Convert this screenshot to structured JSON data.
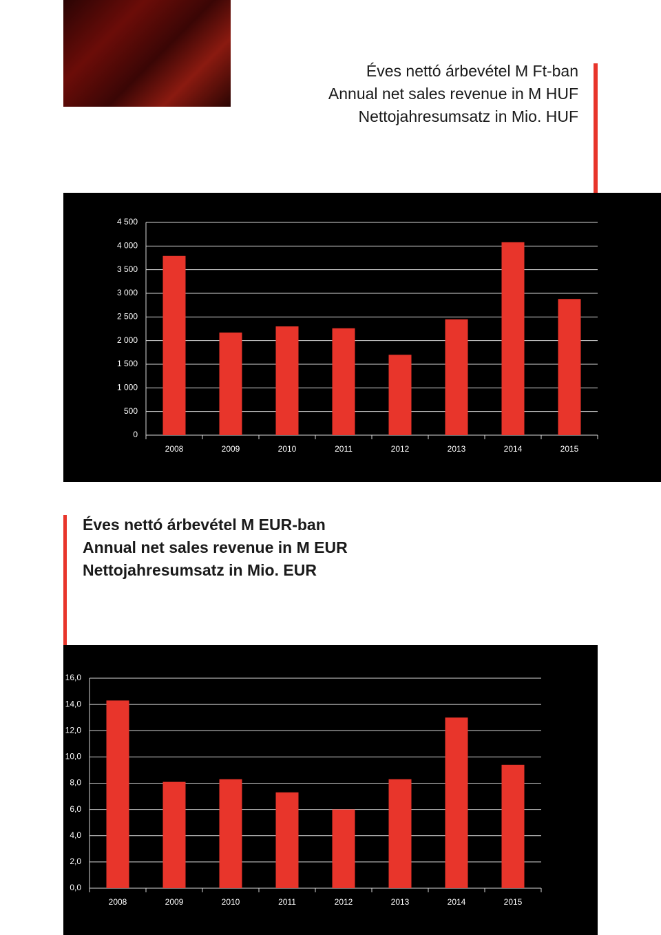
{
  "chart_data": [
    {
      "type": "bar",
      "title": [
        "Éves nettó árbevétel M Ft-ban",
        "Annual net sales revenue in M HUF",
        "Nettojahresumsatz in Mio. HUF"
      ],
      "categories": [
        "2008",
        "2009",
        "2010",
        "2011",
        "2012",
        "2013",
        "2014",
        "2015"
      ],
      "values": [
        3790,
        2170,
        2300,
        2260,
        1700,
        2450,
        4080,
        2880
      ],
      "color": "#e8352b",
      "ylim": [
        0,
        4500
      ],
      "yticks": [
        0,
        500,
        {
          "value": 1000,
          "label": "1 000"
        },
        {
          "value": 1500,
          "label": "1 500"
        },
        {
          "value": 2000,
          "label": "2 000"
        },
        {
          "value": 2500,
          "label": "2 500"
        },
        {
          "value": 3000,
          "label": "3 000"
        },
        {
          "value": 3500,
          "label": "3 500"
        },
        {
          "value": 4000,
          "label": "4 000"
        },
        {
          "value": 4500,
          "label": "4 500"
        }
      ],
      "grid": true
    },
    {
      "type": "bar",
      "title": [
        "Éves nettó árbevétel M EUR-ban",
        "Annual net sales revenue in M EUR",
        "Nettojahresumsatz in Mio. EUR"
      ],
      "categories": [
        "2008",
        "2009",
        "2010",
        "2011",
        "2012",
        "2013",
        "2014",
        "2015"
      ],
      "values": [
        14.3,
        8.1,
        8.3,
        7.3,
        6.0,
        8.3,
        13.0,
        9.4
      ],
      "color": "#e8352b",
      "ylim": [
        0,
        16
      ],
      "yticks": [
        {
          "value": 0,
          "label": "0,0"
        },
        {
          "value": 2,
          "label": "2,0"
        },
        {
          "value": 4,
          "label": "4,0"
        },
        {
          "value": 6,
          "label": "6,0"
        },
        {
          "value": 8,
          "label": "8,0"
        },
        {
          "value": 10,
          "label": "10,0"
        },
        {
          "value": 12,
          "label": "12,0"
        },
        {
          "value": 14,
          "label": "14,0"
        },
        {
          "value": 16,
          "label": "16,0"
        }
      ],
      "grid": true
    }
  ]
}
